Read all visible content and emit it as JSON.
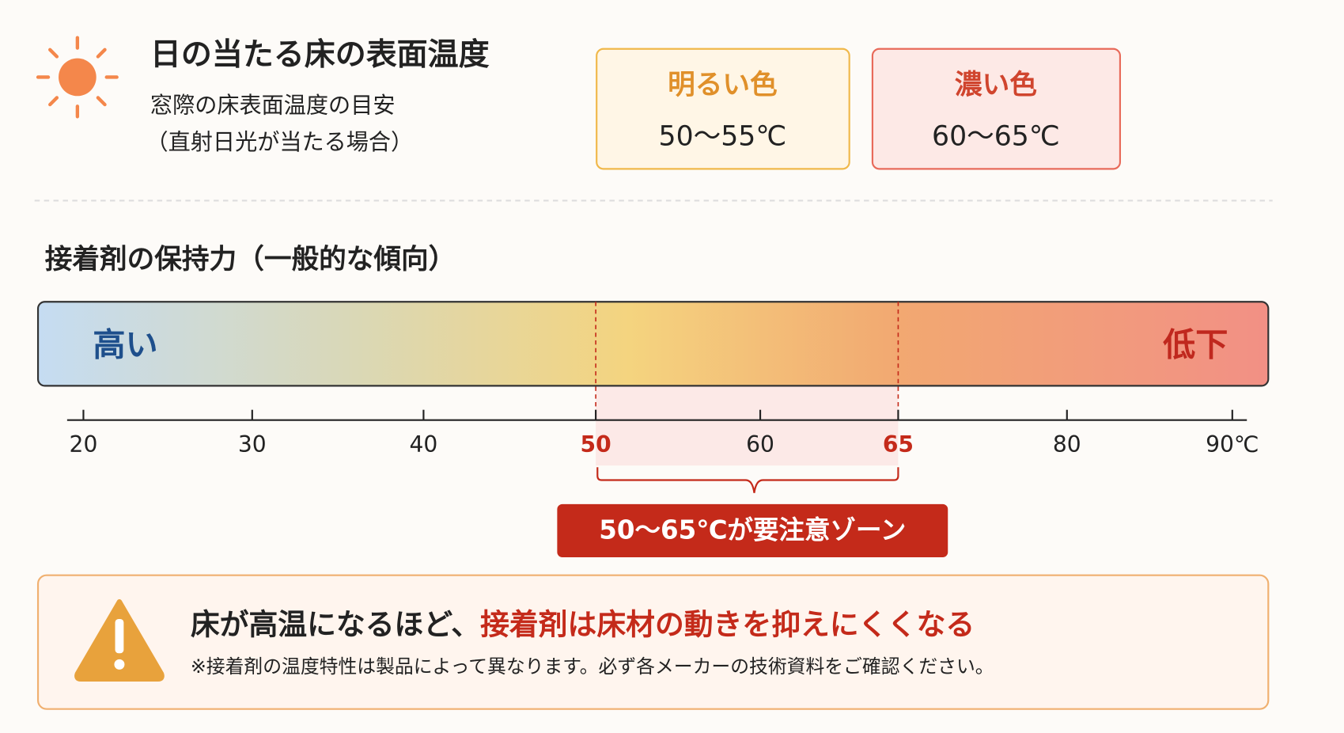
{
  "header": {
    "title": "日の当たる床の表面温度",
    "subtitle": [
      "窓際の床表面温度の目安",
      "（直射日光が当たる場合）"
    ]
  },
  "cards": [
    {
      "label": "明るい色",
      "value": "50〜55℃"
    },
    {
      "label": "濃い色",
      "value": "60〜65℃"
    }
  ],
  "section_title": "接着剤の保持力（一般的な傾向）",
  "bar": {
    "left_label": "高い",
    "right_label": "低下"
  },
  "ticks": [
    {
      "label": "20"
    },
    {
      "label": "30"
    },
    {
      "label": "40"
    },
    {
      "label": "50",
      "highlight": true
    },
    {
      "label": "60"
    },
    {
      "label": "65",
      "highlight": true
    },
    {
      "label": "80"
    },
    {
      "label": "90℃"
    }
  ],
  "zone_label": "50〜65℃が要注意ゾーン",
  "warning": {
    "lead": "床が高温になるほど、",
    "emphasis": "接着剤は床材の動きを抑えにくくなる",
    "note": "※接着剤の温度特性は製品によって異なります。必ず各メーカーの技術資料をご確認ください。"
  }
}
